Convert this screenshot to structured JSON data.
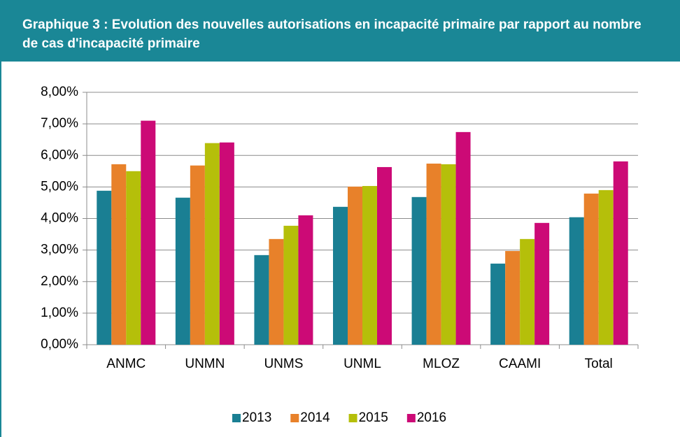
{
  "chart_data": {
    "type": "bar",
    "title": "Graphique 3 : Evolution des nouvelles autorisations en incapacité primaire par rapport au nombre de cas d'incapacité primaire",
    "categories": [
      "ANMC",
      "UNMN",
      "UNMS",
      "UNML",
      "MLOZ",
      "CAAMI",
      "Total"
    ],
    "series": [
      {
        "name": "2013",
        "color": "#1a7f93",
        "values": [
          4.88,
          4.66,
          2.84,
          4.37,
          4.68,
          2.57,
          4.04
        ]
      },
      {
        "name": "2014",
        "color": "#e8812a",
        "values": [
          5.72,
          5.68,
          3.35,
          5.01,
          5.74,
          2.97,
          4.79
        ]
      },
      {
        "name": "2015",
        "color": "#b5bf0a",
        "values": [
          5.5,
          6.39,
          3.77,
          5.03,
          5.72,
          3.35,
          4.9
        ]
      },
      {
        "name": "2016",
        "color": "#cc0a76",
        "values": [
          7.1,
          6.41,
          4.1,
          5.63,
          6.74,
          3.86,
          5.81
        ]
      }
    ],
    "ylim": [
      0,
      8
    ],
    "yticks": [
      {
        "value": 0,
        "label": "0,00%"
      },
      {
        "value": 1,
        "label": "1,00%"
      },
      {
        "value": 2,
        "label": "2,00%"
      },
      {
        "value": 3,
        "label": "3,00%"
      },
      {
        "value": 4,
        "label": "4,00%"
      },
      {
        "value": 5,
        "label": "5,00%"
      },
      {
        "value": 6,
        "label": "6,00%"
      },
      {
        "value": 7,
        "label": "7,00%"
      },
      {
        "value": 8,
        "label": "8,00%"
      }
    ],
    "grid": true,
    "legend": "bottom"
  }
}
